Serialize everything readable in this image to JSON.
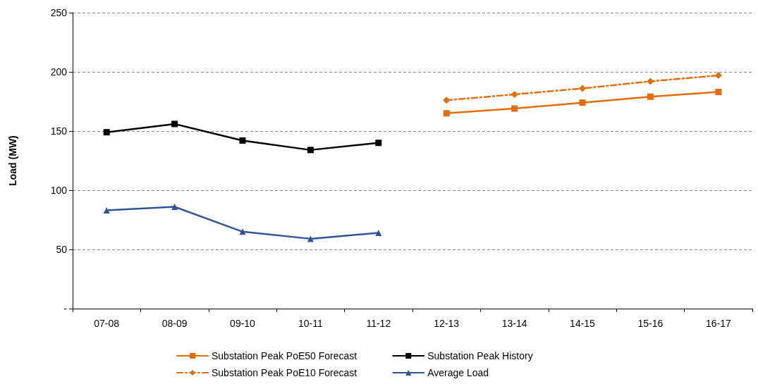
{
  "chart_data": {
    "type": "line",
    "ylabel": "Load (MW)",
    "categories": [
      "07-08",
      "08-09",
      "09-10",
      "10-11",
      "11-12",
      "12-13",
      "13-14",
      "14-15",
      "15-16",
      "16-17"
    ],
    "series": [
      {
        "name": "Substation Peak PoE50 Forecast",
        "color": "#e46c0a",
        "marker": "square",
        "line_style": "solid",
        "values": [
          null,
          null,
          null,
          null,
          null,
          165,
          169,
          174,
          179,
          183
        ]
      },
      {
        "name": "Substation Peak History",
        "color": "#000000",
        "marker": "square",
        "line_style": "solid",
        "values": [
          149,
          156,
          142,
          134,
          140,
          null,
          null,
          null,
          null,
          null
        ]
      },
      {
        "name": "Substation Peak PoE10 Forecast",
        "color": "#e46c0a",
        "marker": "diamond",
        "line_style": "dashed",
        "values": [
          null,
          null,
          null,
          null,
          null,
          176,
          181,
          186,
          192,
          197
        ]
      },
      {
        "name": "Average Load",
        "color": "#2f5597",
        "marker": "triangle",
        "line_style": "solid",
        "values": [
          83,
          86,
          65,
          59,
          64,
          null,
          null,
          null,
          null,
          null
        ]
      }
    ],
    "ylim": [
      0,
      250
    ],
    "yticks": [
      {
        "value": 0,
        "label": "-"
      },
      50,
      100,
      150,
      200,
      250
    ],
    "grid": "y",
    "legend": "bottom"
  }
}
